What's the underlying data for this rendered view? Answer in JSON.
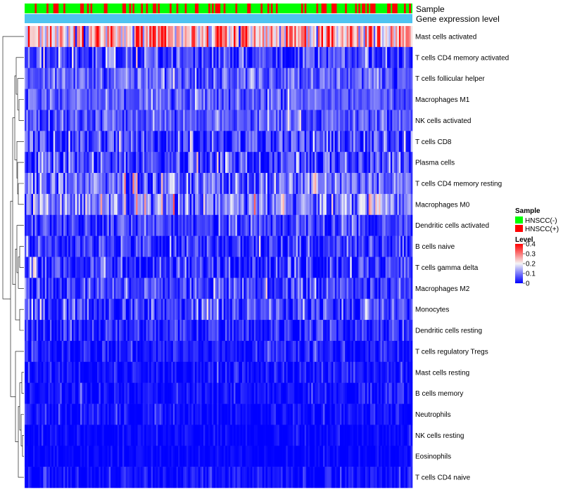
{
  "chart_data": {
    "type": "heatmap",
    "title": "",
    "annotation_tracks": [
      {
        "name": "Sample",
        "type": "categorical"
      },
      {
        "name": "Gene expression level",
        "type": "continuous"
      }
    ],
    "rows": [
      {
        "label": "Mast cells activated",
        "mean": 0.24,
        "spread": 0.12
      },
      {
        "label": "T cells CD4 memory activated",
        "mean": 0.05,
        "spread": 0.07
      },
      {
        "label": "T cells follicular helper",
        "mean": 0.08,
        "spread": 0.05
      },
      {
        "label": "Macrophages M1",
        "mean": 0.07,
        "spread": 0.05
      },
      {
        "label": "NK cells activated",
        "mean": 0.07,
        "spread": 0.05
      },
      {
        "label": "T cells CD8",
        "mean": 0.05,
        "spread": 0.08
      },
      {
        "label": "Plasma cells",
        "mean": 0.05,
        "spread": 0.08
      },
      {
        "label": "T cells CD4 memory resting",
        "mean": 0.08,
        "spread": 0.08
      },
      {
        "label": "Macrophages M0",
        "mean": 0.1,
        "spread": 0.08
      },
      {
        "label": "Dendritic cells activated",
        "mean": 0.05,
        "spread": 0.06
      },
      {
        "label": "B cells naive",
        "mean": 0.04,
        "spread": 0.06
      },
      {
        "label": "T cells gamma delta",
        "mean": 0.04,
        "spread": 0.07
      },
      {
        "label": "Macrophages M2",
        "mean": 0.05,
        "spread": 0.06
      },
      {
        "label": "Monocytes",
        "mean": 0.05,
        "spread": 0.06
      },
      {
        "label": "Dendritic cells resting",
        "mean": 0.03,
        "spread": 0.05
      },
      {
        "label": "T cells regulatory  Tregs",
        "mean": 0.02,
        "spread": 0.04
      },
      {
        "label": "Mast cells resting",
        "mean": 0.01,
        "spread": 0.03
      },
      {
        "label": "B cells memory",
        "mean": 0.01,
        "spread": 0.03
      },
      {
        "label": "Neutrophils",
        "mean": 0.01,
        "spread": 0.03
      },
      {
        "label": "NK cells resting",
        "mean": 0.005,
        "spread": 0.02
      },
      {
        "label": "Eosinophils",
        "mean": 0.003,
        "spread": 0.015
      },
      {
        "label": "T cells CD4 naive",
        "mean": 0.01,
        "spread": 0.03
      }
    ],
    "n_columns": 230,
    "positive_fraction": 0.3,
    "color_scale": {
      "min": 0,
      "max": 0.4,
      "stops": [
        {
          "value": 0,
          "color": "#0000ff"
        },
        {
          "value": 0.2,
          "color": "#f5f5f5"
        },
        {
          "value": 0.4,
          "color": "#ff0000"
        }
      ]
    },
    "legend": {
      "position": "right",
      "sample_title": "Sample",
      "sample_entries": [
        {
          "label": "HNSCC(-)",
          "color": "#00ff00"
        },
        {
          "label": "HNSCC(+)",
          "color": "#ff0000"
        }
      ],
      "level_title": "Level",
      "level_ticks": [
        {
          "value": 0.4,
          "label": "0.4"
        },
        {
          "value": 0.3,
          "label": "0.3"
        },
        {
          "value": 0.2,
          "label": "0.2"
        },
        {
          "value": 0.1,
          "label": "0.1"
        },
        {
          "value": 0,
          "label": "0"
        }
      ]
    },
    "expression_track_color": "#4ec3f0",
    "dendrogram": "row"
  }
}
